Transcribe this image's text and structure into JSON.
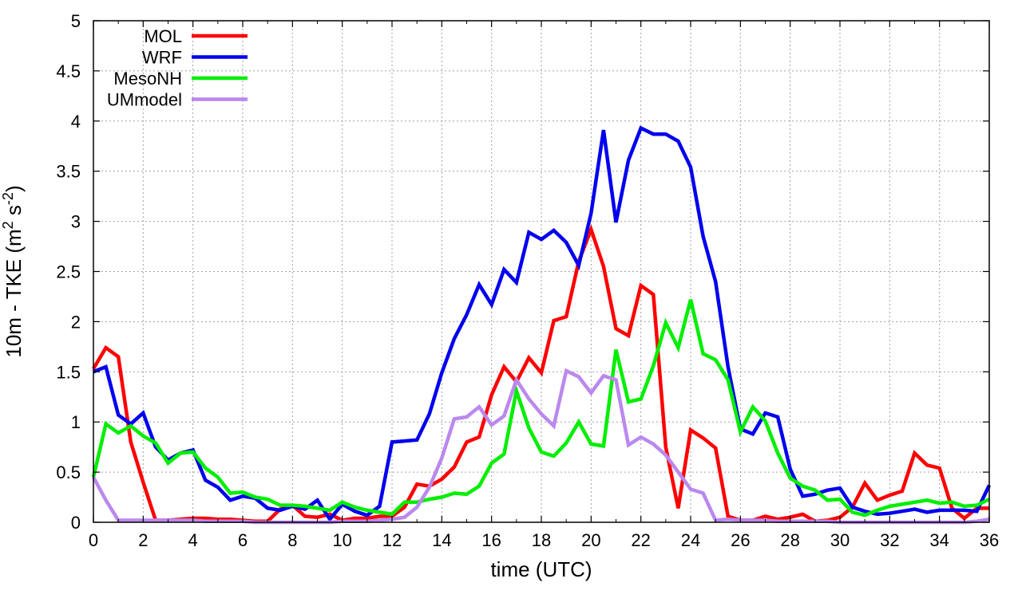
{
  "chart_data": {
    "type": "line",
    "xlabel": "time (UTC)",
    "ylabel_main": "10m - TKE (m",
    "ylabel_sup1": "2",
    "ylabel_mid": " s",
    "ylabel_sup2": "-2",
    "ylabel_end": ")",
    "xlim": [
      0,
      36
    ],
    "ylim": [
      0,
      5
    ],
    "xticks": [
      0,
      2,
      4,
      6,
      8,
      10,
      12,
      14,
      16,
      18,
      20,
      22,
      24,
      26,
      28,
      30,
      32,
      34,
      36
    ],
    "yticks": [
      0,
      0.5,
      1,
      1.5,
      2,
      2.5,
      3,
      3.5,
      4,
      4.5,
      5
    ],
    "ytick_labels": [
      "0",
      "0.5",
      "1",
      "1.5",
      "2",
      "2.5",
      "3",
      "3.5",
      "4",
      "4.5",
      "5"
    ],
    "grid": true,
    "legend_position": "top-left",
    "x": [
      0,
      0.5,
      1,
      1.5,
      2,
      2.5,
      3,
      3.5,
      4,
      4.5,
      5,
      5.5,
      6,
      6.5,
      7,
      7.5,
      8,
      8.5,
      9,
      9.5,
      10,
      10.5,
      11,
      11.5,
      12,
      12.5,
      13,
      13.5,
      14,
      14.5,
      15,
      15.5,
      16,
      16.5,
      17,
      17.5,
      18,
      18.5,
      19,
      19.5,
      20,
      20.5,
      21,
      21.5,
      22,
      22.5,
      23,
      23.5,
      24,
      24.5,
      25,
      25.5,
      26,
      26.5,
      27,
      27.5,
      28,
      28.5,
      29,
      29.5,
      30,
      30.5,
      31,
      31.5,
      32,
      32.5,
      33,
      33.5,
      34,
      34.5,
      35,
      35.5,
      36
    ],
    "series": [
      {
        "name": "MOL",
        "color": "#ff0000",
        "values": [
          1.53,
          1.74,
          1.65,
          0.8,
          0.4,
          0.02,
          0.02,
          0.03,
          0.04,
          0.04,
          0.03,
          0.03,
          0.02,
          0.01,
          0.01,
          0.13,
          0.17,
          0.06,
          0.05,
          0.08,
          0.02,
          0.04,
          0.04,
          0.06,
          0.06,
          0.15,
          0.38,
          0.36,
          0.43,
          0.55,
          0.8,
          0.85,
          1.27,
          1.55,
          1.4,
          1.64,
          1.49,
          2.01,
          2.05,
          2.6,
          2.92,
          2.55,
          1.93,
          1.86,
          2.36,
          2.27,
          0.75,
          0.14,
          0.92,
          0.84,
          0.74,
          0.06,
          0.02,
          0.02,
          0.06,
          0.03,
          0.05,
          0.08,
          0.01,
          0.02,
          0.05,
          0.15,
          0.39,
          0.22,
          0.27,
          0.31,
          0.69,
          0.57,
          0.54,
          0.14,
          0.04,
          0.14,
          0.14
        ]
      },
      {
        "name": "WRF",
        "color": "#0000ee",
        "values": [
          1.5,
          1.55,
          1.07,
          0.98,
          1.09,
          0.75,
          0.62,
          0.69,
          0.72,
          0.42,
          0.35,
          0.22,
          0.26,
          0.24,
          0.14,
          0.12,
          0.16,
          0.13,
          0.22,
          0.03,
          0.18,
          0.11,
          0.07,
          0.16,
          0.8,
          0.81,
          0.82,
          1.08,
          1.49,
          1.83,
          2.07,
          2.37,
          2.17,
          2.52,
          2.39,
          2.89,
          2.82,
          2.91,
          2.79,
          2.56,
          3.08,
          3.91,
          2.99,
          3.61,
          3.93,
          3.87,
          3.87,
          3.8,
          3.54,
          2.85,
          2.4,
          1.55,
          0.93,
          0.88,
          1.09,
          1.05,
          0.53,
          0.26,
          0.28,
          0.32,
          0.34,
          0.15,
          0.11,
          0.08,
          0.09,
          0.11,
          0.13,
          0.1,
          0.12,
          0.12,
          0.12,
          0.11,
          0.37
        ]
      },
      {
        "name": "MesoNH",
        "color": "#00ee00",
        "values": [
          0.45,
          0.98,
          0.89,
          0.96,
          0.86,
          0.79,
          0.59,
          0.69,
          0.7,
          0.54,
          0.45,
          0.29,
          0.3,
          0.25,
          0.23,
          0.17,
          0.17,
          0.16,
          0.14,
          0.12,
          0.2,
          0.15,
          0.12,
          0.1,
          0.08,
          0.2,
          0.2,
          0.23,
          0.25,
          0.29,
          0.28,
          0.36,
          0.59,
          0.68,
          1.31,
          0.94,
          0.7,
          0.66,
          0.79,
          1.0,
          0.78,
          0.76,
          1.72,
          1.2,
          1.23,
          1.56,
          1.99,
          1.74,
          2.22,
          1.68,
          1.62,
          1.42,
          0.9,
          1.15,
          1.01,
          0.69,
          0.44,
          0.36,
          0.32,
          0.22,
          0.23,
          0.1,
          0.07,
          0.12,
          0.16,
          0.18,
          0.2,
          0.22,
          0.19,
          0.2,
          0.16,
          0.17,
          0.23
        ]
      },
      {
        "name": "UMmodel",
        "color": "#bb88ee",
        "values": [
          0.45,
          0.22,
          0.02,
          0.02,
          0.02,
          0.02,
          0.02,
          0.02,
          0.02,
          0.01,
          0.01,
          0.01,
          0.01,
          0.0,
          0.0,
          0.0,
          0.0,
          0.0,
          0.0,
          0.0,
          0.01,
          0.01,
          0.01,
          0.02,
          0.03,
          0.05,
          0.15,
          0.35,
          0.64,
          1.03,
          1.05,
          1.15,
          0.97,
          1.06,
          1.42,
          1.23,
          1.08,
          0.96,
          1.51,
          1.45,
          1.29,
          1.46,
          1.42,
          0.77,
          0.85,
          0.78,
          0.67,
          0.5,
          0.33,
          0.29,
          0.02,
          0.03,
          0.02,
          0.02,
          0.02,
          0.01,
          0.01,
          0.01,
          0.01,
          0.01,
          0.0,
          0.0,
          0.0,
          0.0,
          0.0,
          0.0,
          0.0,
          0.0,
          0.0,
          0.0,
          0.0,
          0.01,
          0.03
        ]
      }
    ]
  }
}
